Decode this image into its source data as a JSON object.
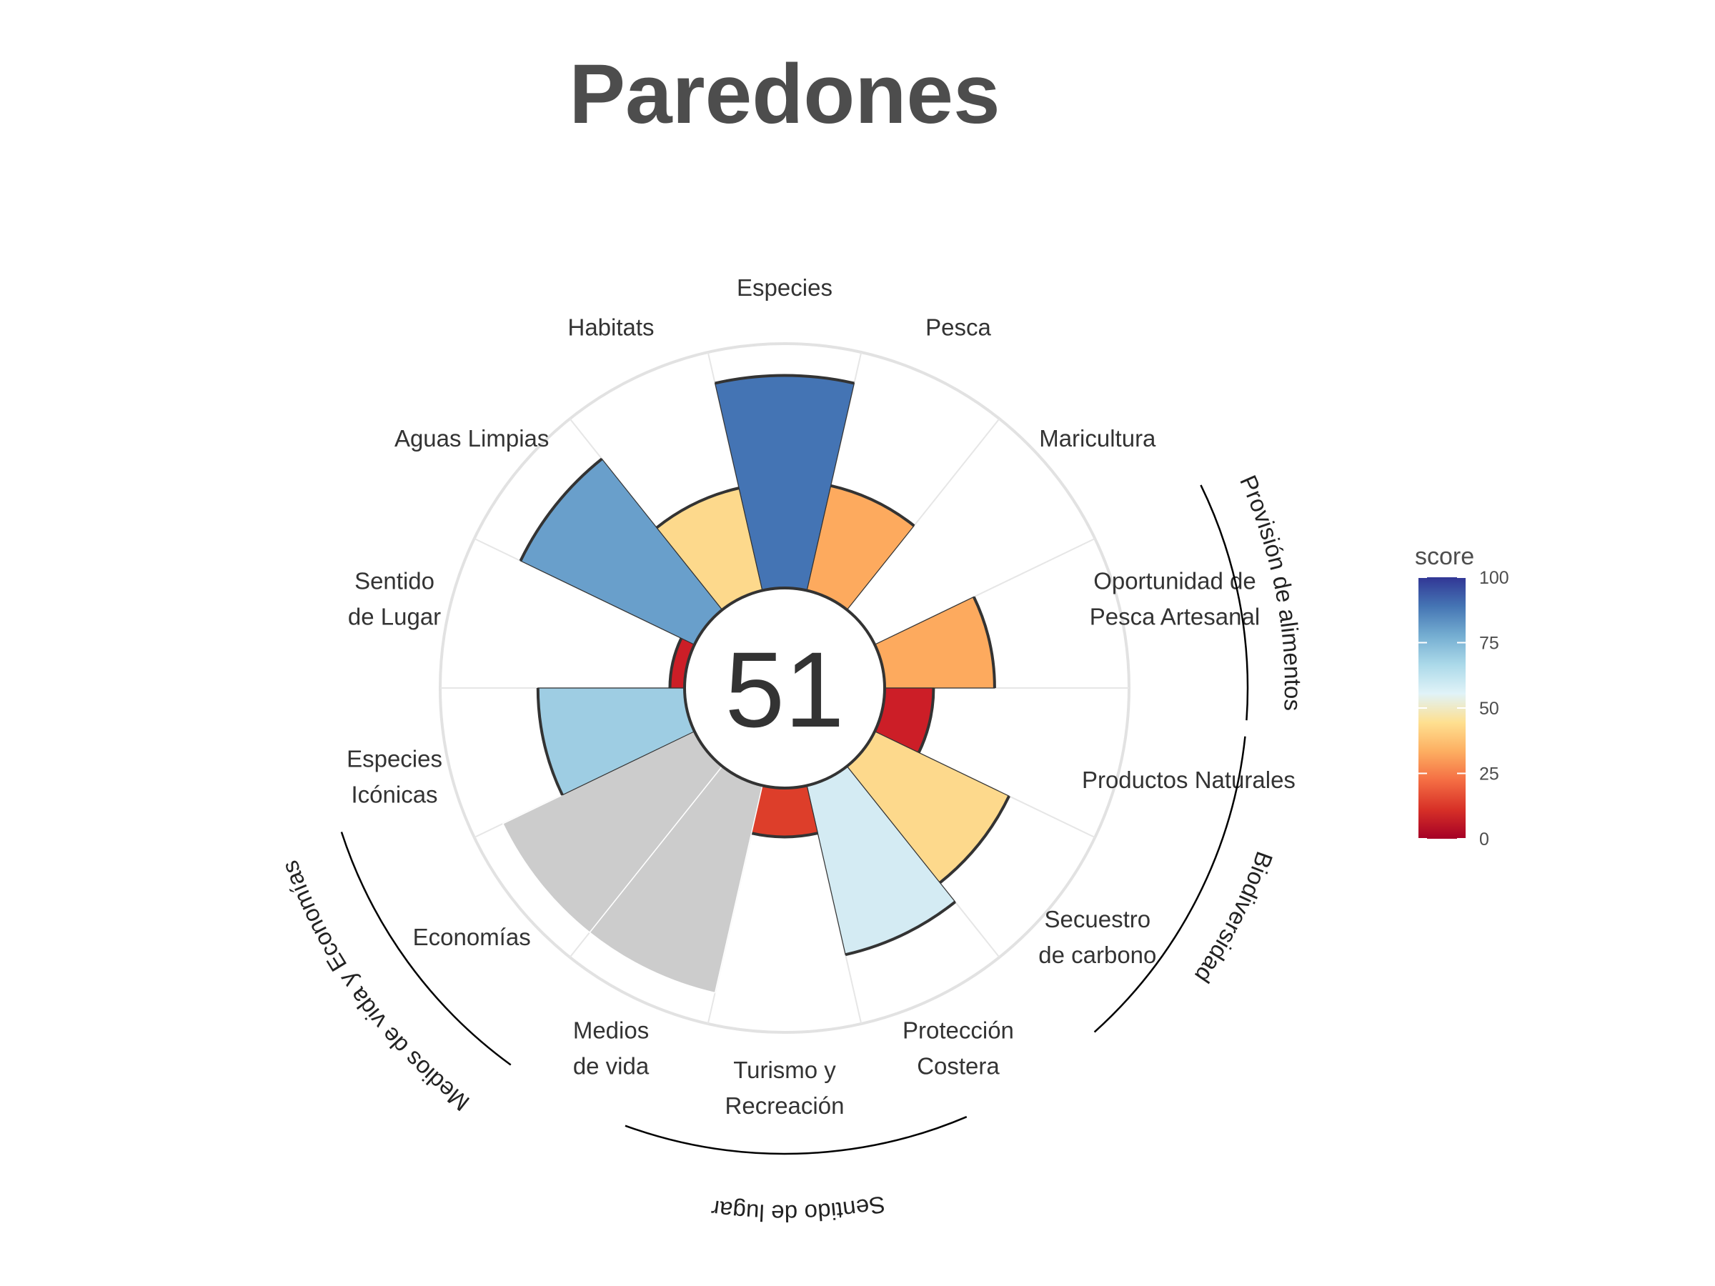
{
  "chart_data": {
    "type": "flower",
    "title": "Paredones",
    "center_score": "51",
    "ylim": [
      0,
      100
    ],
    "grid": true,
    "petals": [
      {
        "label": [
          "Pesca"
        ],
        "score": 44,
        "weight": 1,
        "color": "#fdaa5e"
      },
      {
        "label": [
          "Maricultura"
        ],
        "score": null,
        "weight": 1,
        "color": ""
      },
      {
        "label": [
          "Oportunidad de",
          "Pesca Artesanal"
        ],
        "score": 45,
        "weight": 1,
        "color": "#fdaa5e"
      },
      {
        "label": [
          "Productos Naturales"
        ],
        "score": 20,
        "weight": 1,
        "color": "#cc1e27"
      },
      {
        "label": [
          "Secuestro",
          "de carbono"
        ],
        "score": 61,
        "weight": 1,
        "color": "#fdd98c"
      },
      {
        "label": [
          "Protección",
          "Costera"
        ],
        "score": 71,
        "weight": 1,
        "color": "#d4ebf3"
      },
      {
        "label": [
          "Turismo y",
          "Recreación"
        ],
        "score": 20,
        "weight": 1,
        "color": "#dd3e2a"
      },
      {
        "label": [
          "Medios",
          "de vida"
        ],
        "score": 87,
        "weight": 1,
        "color": "#cccccc",
        "na": true
      },
      {
        "label": [
          "Economías"
        ],
        "score": 87,
        "weight": 1,
        "color": "#cccccc",
        "na": true
      },
      {
        "label": [
          "Especies",
          "Icónicas"
        ],
        "score": 60,
        "weight": 1,
        "color": "#9ecde3"
      },
      {
        "label": [
          "Sentido",
          "de Lugar"
        ],
        "score": 6,
        "weight": 1,
        "color": "#cc1e27"
      },
      {
        "label": [
          "Aguas Limpias"
        ],
        "score": 79,
        "weight": 1,
        "color": "#699fcb"
      },
      {
        "label": [
          "Habitats"
        ],
        "score": 43,
        "weight": 1,
        "color": "#fdd98c"
      },
      {
        "label": [
          "Especies"
        ],
        "score": 87,
        "weight": 1,
        "color": "#4474b4"
      }
    ],
    "groups": [
      {
        "name": "Provisión de alimentos"
      },
      {
        "name": "Biodiversidad"
      },
      {
        "name": "Sentido de lugar"
      },
      {
        "name": "Medios de vida y Economías"
      }
    ],
    "legend": {
      "title": "score",
      "ticks": [
        "0",
        "25",
        "50",
        "75",
        "100"
      ],
      "placement": "right",
      "colors": [
        "#a50026",
        "#d73027",
        "#f46d43",
        "#fdae61",
        "#fee090",
        "#e0f3f8",
        "#abd9e9",
        "#74add1",
        "#4575b4",
        "#313695"
      ]
    }
  }
}
